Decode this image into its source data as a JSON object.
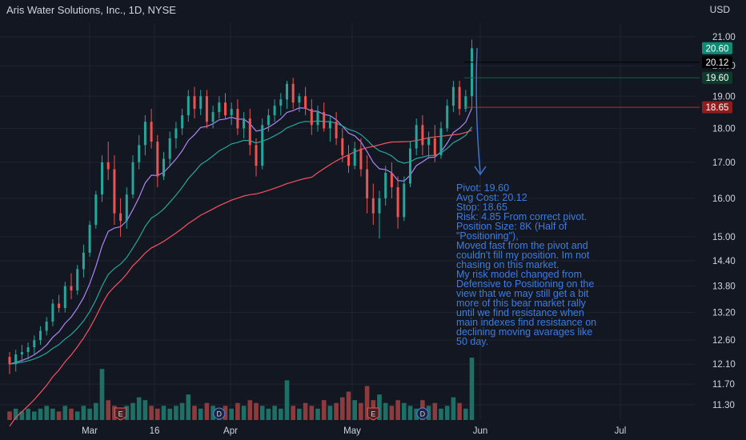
{
  "chart_data": {
    "type": "candlestick",
    "title": "Aris Water Solutions, Inc., 1D, NYSE",
    "currency": "USD",
    "y_axis": {
      "scale": "log",
      "ticks": [
        "21.00",
        "20.00",
        "19.00",
        "18.00",
        "17.00",
        "16.00",
        "15.00",
        "14.40",
        "13.80",
        "13.20",
        "12.60",
        "12.10",
        "11.70",
        "11.30"
      ]
    },
    "x_axis": {
      "ticks": [
        "Mar",
        "16",
        "Apr",
        "May",
        "Jun",
        "Jul"
      ]
    },
    "ohlc": [
      [
        12.25,
        12.35,
        11.9,
        12.1
      ],
      [
        12.1,
        12.4,
        11.95,
        12.3
      ],
      [
        12.3,
        12.5,
        12.15,
        12.35
      ],
      [
        12.35,
        12.55,
        12.2,
        12.45
      ],
      [
        12.45,
        12.7,
        12.3,
        12.6
      ],
      [
        12.6,
        12.9,
        12.5,
        12.8
      ],
      [
        12.8,
        13.1,
        12.7,
        13.0
      ],
      [
        13.0,
        13.5,
        12.9,
        13.4
      ],
      [
        13.4,
        13.6,
        13.2,
        13.3
      ],
      [
        13.3,
        13.9,
        13.2,
        13.8
      ],
      [
        13.8,
        14.1,
        13.5,
        13.7
      ],
      [
        13.7,
        14.3,
        13.6,
        14.2
      ],
      [
        14.2,
        14.8,
        14.0,
        14.6
      ],
      [
        14.6,
        15.4,
        14.5,
        15.3
      ],
      [
        15.3,
        16.2,
        15.2,
        16.1
      ],
      [
        16.1,
        17.2,
        15.9,
        17.0
      ],
      [
        17.0,
        17.6,
        16.5,
        16.8
      ],
      [
        16.8,
        17.2,
        15.3,
        15.6
      ],
      [
        15.6,
        16.0,
        15.0,
        15.4
      ],
      [
        15.4,
        16.3,
        15.2,
        16.1
      ],
      [
        16.1,
        17.2,
        16.0,
        17.0
      ],
      [
        17.0,
        17.8,
        16.8,
        17.5
      ],
      [
        17.5,
        18.4,
        17.2,
        18.2
      ],
      [
        18.2,
        18.6,
        17.4,
        17.6
      ],
      [
        17.6,
        17.8,
        16.3,
        16.6
      ],
      [
        16.6,
        17.3,
        16.5,
        17.1
      ],
      [
        17.1,
        17.9,
        16.9,
        17.7
      ],
      [
        17.7,
        18.2,
        17.4,
        18.0
      ],
      [
        18.0,
        18.6,
        17.8,
        18.4
      ],
      [
        18.4,
        19.2,
        18.2,
        19.0
      ],
      [
        19.0,
        19.3,
        18.3,
        18.6
      ],
      [
        18.6,
        19.2,
        18.4,
        19.0
      ],
      [
        19.0,
        19.2,
        18.0,
        18.2
      ],
      [
        18.2,
        18.7,
        18.0,
        18.5
      ],
      [
        18.5,
        19.0,
        18.3,
        18.8
      ],
      [
        18.8,
        19.1,
        18.3,
        18.4
      ],
      [
        18.4,
        18.8,
        18.1,
        18.6
      ],
      [
        18.6,
        18.9,
        17.8,
        18.0
      ],
      [
        18.0,
        18.5,
        17.7,
        18.3
      ],
      [
        18.3,
        18.6,
        17.2,
        17.5
      ],
      [
        17.5,
        17.7,
        16.6,
        16.9
      ],
      [
        16.9,
        18.3,
        16.8,
        18.1
      ],
      [
        18.1,
        18.6,
        17.9,
        18.4
      ],
      [
        18.4,
        18.9,
        18.2,
        18.7
      ],
      [
        18.7,
        19.1,
        18.4,
        18.9
      ],
      [
        18.9,
        19.5,
        18.6,
        19.4
      ],
      [
        19.4,
        19.6,
        18.6,
        18.8
      ],
      [
        18.8,
        19.1,
        18.5,
        19.0
      ],
      [
        19.0,
        19.3,
        18.4,
        18.6
      ],
      [
        18.6,
        18.9,
        17.8,
        18.1
      ],
      [
        18.1,
        18.7,
        17.9,
        18.5
      ],
      [
        18.5,
        18.8,
        17.9,
        18.0
      ],
      [
        18.0,
        18.4,
        17.6,
        18.2
      ],
      [
        18.2,
        18.5,
        17.5,
        17.7
      ],
      [
        17.7,
        18.0,
        17.0,
        17.2
      ],
      [
        17.2,
        17.5,
        16.7,
        16.9
      ],
      [
        16.9,
        17.6,
        16.8,
        17.4
      ],
      [
        17.4,
        17.7,
        16.6,
        16.8
      ],
      [
        16.8,
        17.2,
        15.6,
        16.0
      ],
      [
        16.0,
        16.4,
        15.3,
        15.6
      ],
      [
        15.6,
        16.2,
        14.95,
        16.0
      ],
      [
        16.0,
        16.9,
        15.8,
        16.7
      ],
      [
        16.7,
        17.0,
        16.0,
        16.3
      ],
      [
        16.3,
        16.6,
        15.2,
        15.5
      ],
      [
        15.5,
        16.6,
        15.4,
        16.4
      ],
      [
        16.4,
        17.6,
        16.3,
        17.4
      ],
      [
        17.4,
        18.3,
        17.2,
        18.1
      ],
      [
        18.1,
        18.4,
        17.2,
        17.5
      ],
      [
        17.5,
        17.9,
        17.1,
        17.7
      ],
      [
        17.7,
        18.1,
        17.0,
        17.2
      ],
      [
        17.2,
        18.2,
        17.1,
        18.0
      ],
      [
        18.0,
        18.9,
        17.9,
        18.7
      ],
      [
        18.7,
        19.5,
        18.5,
        19.3
      ],
      [
        19.3,
        19.5,
        18.4,
        18.6
      ],
      [
        18.6,
        19.2,
        18.5,
        19.0
      ],
      [
        19.0,
        20.9,
        18.6,
        20.6
      ]
    ],
    "volume": [
      3,
      4,
      3,
      4,
      3,
      4,
      5,
      4,
      3,
      5,
      4,
      3,
      5,
      4,
      6,
      18,
      7,
      5,
      4,
      5,
      6,
      8,
      7,
      5,
      4,
      5,
      4,
      5,
      6,
      9,
      5,
      4,
      6,
      5,
      4,
      5,
      4,
      6,
      5,
      7,
      6,
      5,
      4,
      5,
      4,
      14,
      5,
      4,
      6,
      5,
      4,
      7,
      5,
      6,
      8,
      10,
      7,
      6,
      12,
      7,
      9,
      6,
      5,
      7,
      6,
      5,
      4,
      7,
      5,
      6,
      4,
      5,
      8,
      6,
      4,
      22
    ],
    "moving_averages": [
      {
        "color": "#b085f5"
      },
      {
        "color": "#26a69a"
      },
      {
        "color": "#f7525f"
      }
    ],
    "horizontal_lines": [
      {
        "label": "20.12",
        "value": 20.12,
        "color": "#000000"
      },
      {
        "label": "19.60",
        "value": 19.6,
        "color": "#1b5e3f"
      },
      {
        "label": "18.65",
        "value": 18.65,
        "color": "#c62828"
      }
    ],
    "price_badges": [
      {
        "label": "20.60",
        "value": 20.6,
        "bg": "#138b74",
        "fg": "#ffffff"
      },
      {
        "label": "20.12",
        "value": 20.12,
        "bg": "#000000",
        "fg": "#ffffff"
      },
      {
        "label": "19.60",
        "value": 19.6,
        "bg": "#0f3b2c",
        "fg": "#ffffff"
      },
      {
        "label": "18.65",
        "value": 18.65,
        "bg": "#8f1d1d",
        "fg": "#ffffff"
      }
    ],
    "event_markers": [
      {
        "type": "E",
        "index": 18
      },
      {
        "type": "D",
        "index": 34
      },
      {
        "type": "E",
        "index": 59
      },
      {
        "type": "D",
        "index": 67
      }
    ],
    "annotation": "Pivot: 19.60\nAvg Cost: 20.12\nStop: 18.65\nRisk: 4.85 From correct pivot.\nPosition Size: 8K (Half of \"Positioning\"),\nMoved fast from the pivot and couldn't fill my position. Im not chasing on this market.\nMy risk model changed from Defensive to Positioning on the view that we may still get a bit more of this bear market rally until we find resistance when main indexes find resistance on declining moving avarages like 50 day."
  },
  "colors": {
    "up": "#26a69a",
    "down": "#ef5350",
    "volume_up": "#1e6f66",
    "volume_down": "#8e3b3d",
    "grid": "#1f2430",
    "axis_text": "#d1d4dc",
    "annotation": "#3d7de0"
  }
}
